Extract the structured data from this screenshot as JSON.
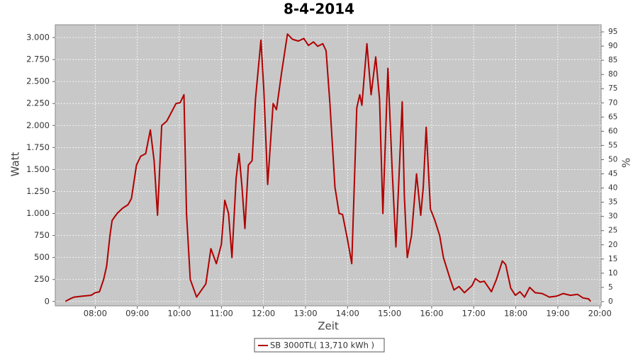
{
  "chart_data": {
    "type": "line",
    "title": "8-4-2014",
    "xlabel": "Zeit",
    "ylabel": "Watt",
    "y2label": "%",
    "x": [
      7.29,
      7.4,
      7.5,
      7.7,
      7.9,
      8.0,
      8.1,
      8.2,
      8.27,
      8.35,
      8.4,
      8.52,
      8.65,
      8.78,
      8.86,
      8.98,
      9.08,
      9.2,
      9.31,
      9.4,
      9.48,
      9.58,
      9.7,
      9.79,
      9.92,
      10.02,
      10.11,
      10.17,
      10.26,
      10.41,
      10.63,
      10.75,
      10.88,
      11.0,
      11.08,
      11.17,
      11.25,
      11.35,
      11.42,
      11.49,
      11.56,
      11.64,
      11.73,
      11.81,
      11.94,
      12.01,
      12.1,
      12.23,
      12.31,
      12.43,
      12.57,
      12.69,
      12.83,
      12.96,
      13.07,
      13.19,
      13.29,
      13.41,
      13.49,
      13.58,
      13.7,
      13.8,
      13.88,
      14.0,
      14.1,
      14.22,
      14.29,
      14.34,
      14.46,
      14.56,
      14.67,
      14.76,
      14.84,
      14.96,
      15.06,
      15.15,
      15.23,
      15.3,
      15.35,
      15.42,
      15.52,
      15.64,
      15.74,
      15.8,
      15.87,
      15.97,
      16.07,
      16.19,
      16.28,
      16.45,
      16.53,
      16.65,
      16.78,
      16.96,
      17.04,
      17.15,
      17.25,
      17.42,
      17.54,
      17.68,
      17.76,
      17.88,
      17.99,
      18.1,
      18.21,
      18.33,
      18.46,
      18.63,
      18.8,
      18.97,
      19.13,
      19.3,
      19.47,
      19.6,
      19.73,
      19.78
    ],
    "series": [
      {
        "name": "SB 3000TL( 13,710 kWh )",
        "color": "#b00000",
        "values": [
          0,
          30,
          50,
          60,
          70,
          100,
          110,
          250,
          400,
          750,
          920,
          1000,
          1060,
          1100,
          1170,
          1550,
          1650,
          1680,
          1950,
          1600,
          980,
          2000,
          2050,
          2130,
          2250,
          2260,
          2350,
          1000,
          250,
          50,
          200,
          600,
          430,
          650,
          1150,
          1000,
          500,
          1400,
          1680,
          1300,
          830,
          1550,
          1600,
          2300,
          2970,
          2400,
          1330,
          2250,
          2180,
          2600,
          3040,
          2980,
          2960,
          2990,
          2910,
          2950,
          2900,
          2930,
          2850,
          2250,
          1300,
          1000,
          990,
          700,
          430,
          2200,
          2350,
          2230,
          2930,
          2350,
          2780,
          2300,
          1000,
          2650,
          1500,
          620,
          1500,
          2270,
          1200,
          500,
          750,
          1450,
          980,
          1300,
          1980,
          1050,
          930,
          750,
          500,
          240,
          130,
          170,
          100,
          180,
          260,
          220,
          230,
          110,
          250,
          460,
          420,
          150,
          70,
          110,
          50,
          160,
          100,
          90,
          50,
          60,
          90,
          70,
          80,
          40,
          30,
          0
        ]
      }
    ],
    "xlim": [
      7.05,
      20.03
    ],
    "xticks": [
      {
        "value": 8,
        "label": "08:00"
      },
      {
        "value": 9,
        "label": "09:00"
      },
      {
        "value": 10,
        "label": "10:00"
      },
      {
        "value": 11,
        "label": "11:00"
      },
      {
        "value": 12,
        "label": "12:00"
      },
      {
        "value": 13,
        "label": "13:00"
      },
      {
        "value": 14,
        "label": "14:00"
      },
      {
        "value": 15,
        "label": "15:00"
      },
      {
        "value": 16,
        "label": "16:00"
      },
      {
        "value": 17,
        "label": "17:00"
      },
      {
        "value": 18,
        "label": "18:00"
      },
      {
        "value": 19,
        "label": "19:00"
      },
      {
        "value": 20,
        "label": "20:00"
      }
    ],
    "ylim": [
      -50,
      3145
    ],
    "yticks": [
      0,
      250,
      500,
      750,
      {
        "value": 1000,
        "label": "1.000"
      },
      {
        "value": 1250,
        "label": "1.250"
      },
      {
        "value": 1500,
        "label": "1.500"
      },
      {
        "value": 1750,
        "label": "1.750"
      },
      {
        "value": 2000,
        "label": "2.000"
      },
      {
        "value": 2250,
        "label": "2.250"
      },
      {
        "value": 2500,
        "label": "2.500"
      },
      {
        "value": 2750,
        "label": "2.750"
      },
      {
        "value": 3000,
        "label": "3.000"
      }
    ],
    "y2lim": [
      -1.5,
      97.5
    ],
    "y2ticks": [
      0,
      5,
      10,
      15,
      20,
      25,
      30,
      35,
      40,
      45,
      50,
      55,
      60,
      65,
      70,
      75,
      80,
      85,
      90,
      95
    ],
    "grid": true
  }
}
